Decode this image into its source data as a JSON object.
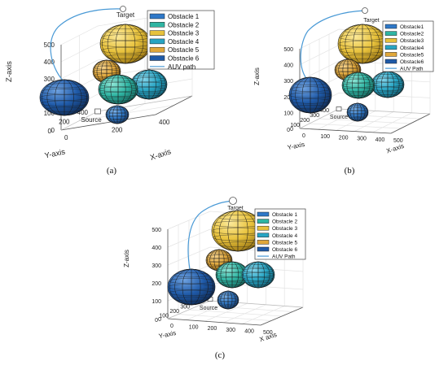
{
  "chart_data": [
    {
      "type": "scatter",
      "panel_label": "(a)",
      "xlabel": "X-axis",
      "ylabel": "Y-axis",
      "zlabel": "Z-axis",
      "x_ticks": [
        "0",
        "200",
        "400"
      ],
      "y_ticks": [
        "0",
        "200",
        "400"
      ],
      "z_ticks": [
        "0",
        "100",
        "200",
        "300",
        "400",
        "500"
      ],
      "target_label": "Target",
      "source_label": "Source",
      "legend_position": "top-right",
      "legend": [
        "Obstacle 1",
        "Obstacle 2",
        "Obstacle 3",
        "Obstacle 4",
        "Obstacle 5",
        "Obstacle 6",
        "AUV path"
      ]
    },
    {
      "type": "scatter",
      "panel_label": "(b)",
      "xlabel": "X-axis",
      "ylabel": "Y-axis",
      "zlabel": "Z-axis",
      "x_ticks": [
        "0",
        "100",
        "200",
        "300",
        "400",
        "500"
      ],
      "y_ticks": [
        "0",
        "100",
        "200",
        "300",
        "400"
      ],
      "z_ticks": [
        "0",
        "100",
        "200",
        "300",
        "400",
        "500"
      ],
      "target_label": "Target",
      "source_label": "Source",
      "legend_position": "top-right",
      "legend": [
        "Obstacle1",
        "Obstacle2",
        "Obstacle3",
        "Obstacle4",
        "Obstacle5",
        "Obstacle6",
        "AUV Path"
      ]
    },
    {
      "type": "scatter",
      "panel_label": "(c)",
      "xlabel": "X axis",
      "ylabel": "Y-axis",
      "zlabel": "Z-axis",
      "x_ticks": [
        "0",
        "100",
        "200",
        "300",
        "400",
        "500"
      ],
      "y_ticks": [
        "0",
        "100",
        "200",
        "300",
        "400"
      ],
      "z_ticks": [
        "0",
        "100",
        "200",
        "300",
        "400",
        "500"
      ],
      "target_label": "Target",
      "source_label": "Source",
      "legend_position": "top-right",
      "legend": [
        "Obstacle 1",
        "Obstacle 2",
        "Obstacle 3",
        "Obstacle 4",
        "Obstacle 5",
        "Obstacle 6",
        "AUV Path"
      ]
    }
  ],
  "colors": {
    "obstacle_1": "#2e78c8",
    "obstacle_2": "#2fb5a3",
    "obstacle_3": "#e8c23c",
    "obstacle_4": "#27a4c3",
    "obstacle_5": "#e0a73a",
    "obstacle_6": "#1f5aa8",
    "path": "#4a9ad6",
    "grid": "#e3e3e3"
  }
}
